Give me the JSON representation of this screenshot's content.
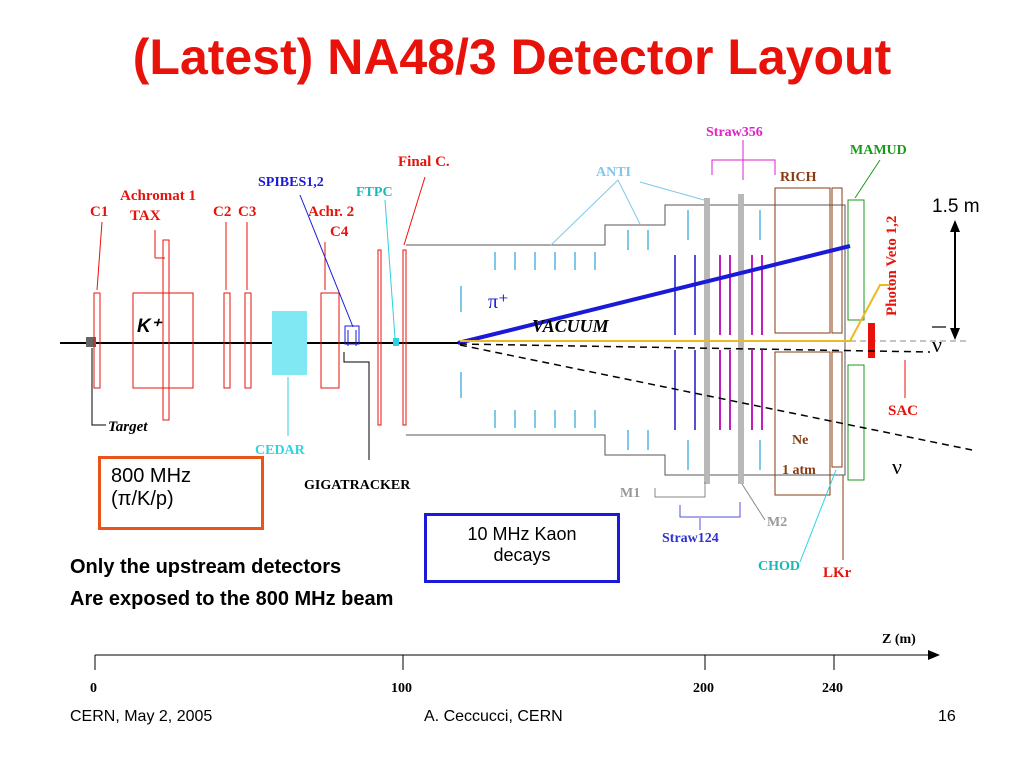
{
  "slide": {
    "title": "(Latest) NA48/3 Detector Layout",
    "footer_left": "CERN, May 2, 2005",
    "footer_center": "A. Ceccucci, CERN",
    "footer_right": "16"
  },
  "labels": {
    "c1": "C1",
    "achromat1": "Achromat 1",
    "tax": "TAX",
    "c2": "C2",
    "c3": "C3",
    "spibes": "SPIBES1,2",
    "final_c": "Final C.",
    "ftpc": "FTPC",
    "achr2": "Achr. 2",
    "c4": "C4",
    "anti": "ANTI",
    "straw356": "Straw356",
    "mamud": "MAMUD",
    "rich": "RICH",
    "photon_veto": "Photon Veto 1,2",
    "scale": "1.5 m",
    "k_plus": "K⁺",
    "pi_plus": "π⁺",
    "vacuum": "VACUUM",
    "nu_bar": "ν",
    "nu": "ν",
    "target": "Target",
    "cedar": "CEDAR",
    "gigatracker": "GIGATRACKER",
    "sac": "SAC",
    "ne": "Ne",
    "one_atm": "1 atm",
    "m1": "M1",
    "m2": "M2",
    "straw124": "Straw124",
    "chod": "CHOD",
    "lkr": "LKr"
  },
  "boxes": {
    "beam_rate_line1": "800 MHz",
    "beam_rate_line2": "(π/K/p)",
    "decays_line1": "10 MHz Kaon",
    "decays_line2": "decays"
  },
  "notes": {
    "line1": "Only the upstream detectors",
    "line2": "Are exposed to the 800 MHz beam"
  },
  "axis": {
    "label": "Z (m)",
    "ticks": [
      "0",
      "100",
      "200",
      "240"
    ]
  },
  "colors": {
    "title": "#e8120a",
    "labels_red": "#e8120a",
    "beam_blue": "#1a1ad8",
    "cyan": "#2cd3e0",
    "magenta": "#e020c8",
    "brown": "#8a3a10",
    "green": "#1a9a1a"
  }
}
